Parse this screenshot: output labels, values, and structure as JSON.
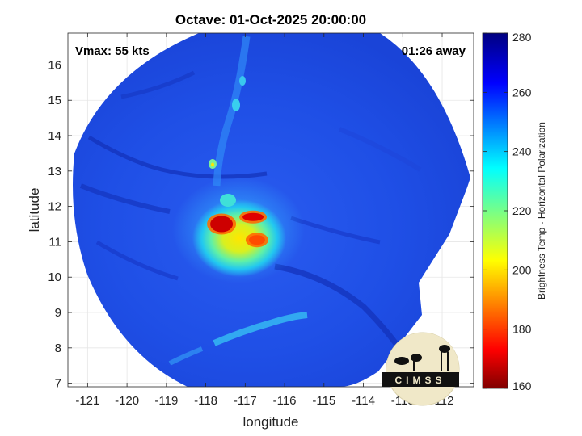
{
  "chart_data": {
    "type": "heatmap",
    "title": "Octave: 01-Oct-2025 20:00:00",
    "xlabel": "longitude",
    "ylabel": "latitude",
    "xlim": [
      -121.5,
      -111.2
    ],
    "ylim": [
      6.9,
      16.9
    ],
    "xticks": [
      -121,
      -120,
      -119,
      -118,
      -117,
      -116,
      -115,
      -114,
      -113,
      -112
    ],
    "yticks": [
      7,
      8,
      9,
      10,
      11,
      12,
      13,
      14,
      15,
      16
    ],
    "grid": true,
    "annotations": {
      "left": "Vmax: 55 kts",
      "right": "01:26 away"
    },
    "colorbar": {
      "label": "Brightness Temp - Horizontal Polarization",
      "range": [
        160,
        280
      ],
      "ticks": [
        280,
        260,
        240,
        220,
        200,
        180,
        160
      ],
      "colormap": "jet"
    },
    "storm_center": {
      "lon": -117.0,
      "lat": 11.2
    },
    "coldest_cores": [
      {
        "lon": -117.6,
        "lat": 11.5,
        "value": 168
      },
      {
        "lon": -116.8,
        "lat": 11.7,
        "value": 170
      },
      {
        "lon": -116.7,
        "lat": 11.05,
        "value": 182
      }
    ],
    "background_value": 262
  },
  "logo": {
    "text": "CIMSS"
  }
}
